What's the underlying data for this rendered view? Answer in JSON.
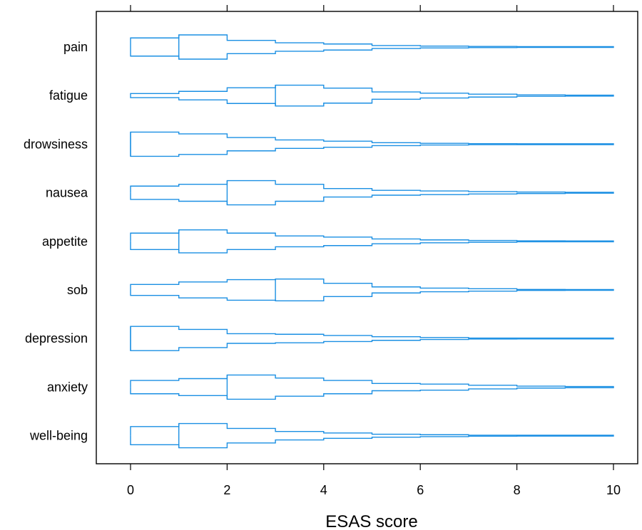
{
  "chart_data": {
    "type": "histogram-density (step violin) plot",
    "xlabel": "ESAS score",
    "xlim": [
      0,
      10
    ],
    "x_ticks": [
      0,
      2,
      4,
      6,
      8,
      10
    ],
    "x_tick_labels": [
      "0",
      "2",
      "4",
      "6",
      "8",
      "10"
    ],
    "bins": [
      [
        0,
        1
      ],
      [
        1,
        2
      ],
      [
        2,
        3
      ],
      [
        3,
        4
      ],
      [
        4,
        5
      ],
      [
        5,
        6
      ],
      [
        6,
        7
      ],
      [
        7,
        8
      ],
      [
        8,
        9
      ],
      [
        9,
        10
      ]
    ],
    "color": "#1a8fe3",
    "categories": [
      "pain",
      "fatigue",
      "drowsiness",
      "nausea",
      "appetite",
      "sob",
      "depression",
      "anxiety",
      "well-being"
    ],
    "series": [
      {
        "name": "pain",
        "values": [
          0.75,
          1.0,
          0.55,
          0.35,
          0.25,
          0.12,
          0.08,
          0.05,
          0.03,
          0.01
        ]
      },
      {
        "name": "fatigue",
        "values": [
          0.17,
          0.35,
          0.65,
          0.86,
          0.62,
          0.3,
          0.2,
          0.12,
          0.06,
          0.04
        ]
      },
      {
        "name": "drowsiness",
        "values": [
          1.0,
          0.85,
          0.55,
          0.35,
          0.25,
          0.12,
          0.07,
          0.04,
          0.02,
          0.01
        ]
      },
      {
        "name": "nausea",
        "values": [
          0.55,
          0.7,
          1.0,
          0.7,
          0.35,
          0.2,
          0.15,
          0.1,
          0.06,
          0.02
        ]
      },
      {
        "name": "appetite",
        "values": [
          0.68,
          0.95,
          0.68,
          0.45,
          0.35,
          0.2,
          0.12,
          0.07,
          0.04,
          0.03
        ]
      },
      {
        "name": "sob",
        "values": [
          0.45,
          0.66,
          0.85,
          0.9,
          0.55,
          0.25,
          0.15,
          0.1,
          0.04,
          0.01
        ]
      },
      {
        "name": "depression",
        "values": [
          1.0,
          0.75,
          0.4,
          0.35,
          0.25,
          0.15,
          0.08,
          0.04,
          0.02,
          0.01
        ]
      },
      {
        "name": "anxiety",
        "values": [
          0.55,
          0.7,
          1.0,
          0.75,
          0.55,
          0.3,
          0.25,
          0.15,
          0.08,
          0.05
        ]
      },
      {
        "name": "well-being",
        "values": [
          0.75,
          1.0,
          0.6,
          0.35,
          0.22,
          0.12,
          0.08,
          0.04,
          0.03,
          0.01
        ]
      }
    ]
  }
}
